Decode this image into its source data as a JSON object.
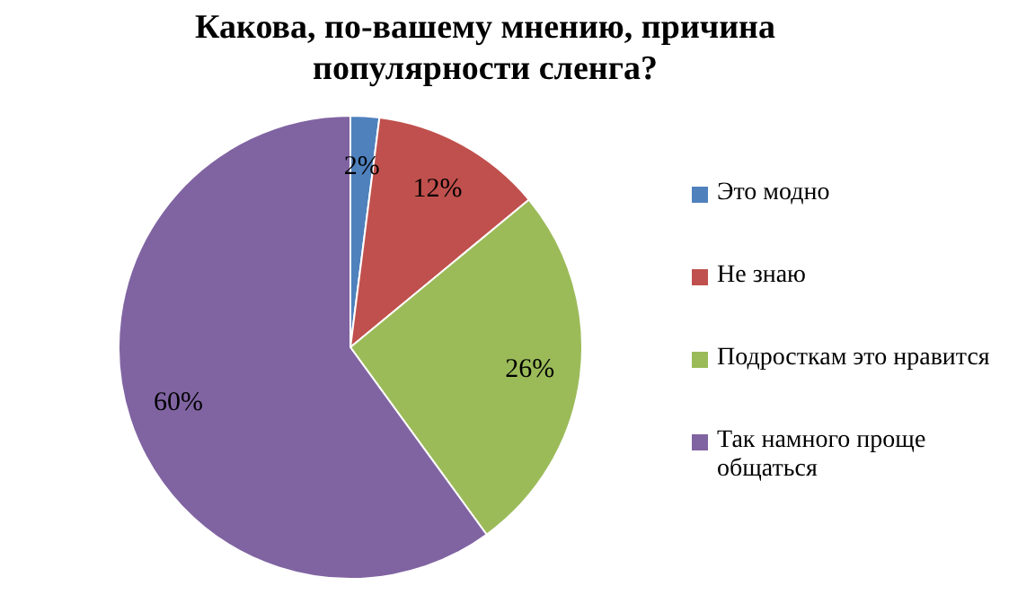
{
  "chart_data": {
    "type": "pie",
    "title": "Какова, по-вашему мнению, причина популярности сленга?",
    "categories": [
      "Это модно",
      "Не знаю",
      "Подросткам это нравится",
      "Так намного проще общаться"
    ],
    "values": [
      2,
      12,
      26,
      60
    ],
    "colors": [
      "#4f81bd",
      "#c0504d",
      "#9bbb59",
      "#8064a2"
    ],
    "value_labels": [
      "2%",
      "12%",
      "26%",
      "60%"
    ],
    "legend": "right"
  }
}
